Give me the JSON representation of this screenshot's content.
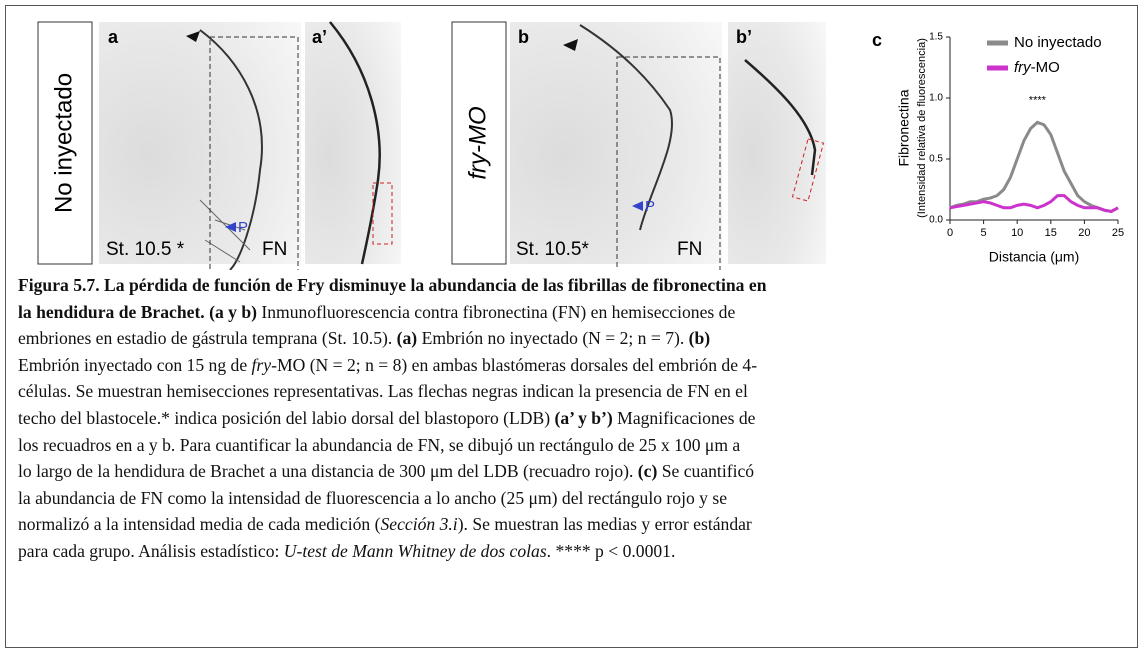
{
  "panels": {
    "a": {
      "label": "a",
      "stage": "St. 10.5 *",
      "stain": "FN",
      "marker": "P",
      "condition": "No inyectado"
    },
    "a_prime": {
      "label": "a’"
    },
    "b": {
      "label": "b",
      "stage": "St. 10.5*",
      "stain": "FN",
      "marker": "P",
      "condition": "fry-MO"
    },
    "b_prime": {
      "label": "b’"
    }
  },
  "chart_data": {
    "type": "line",
    "panel_label": "c",
    "x_label": "Distancia  (μm)",
    "y_label": "Fibronectina",
    "y_label_sub": "(Intensidad relativa de fluorescencia)",
    "annotation": "****",
    "x": [
      0,
      1,
      2,
      3,
      4,
      5,
      6,
      7,
      8,
      9,
      10,
      11,
      12,
      13,
      14,
      15,
      16,
      17,
      18,
      19,
      20,
      21,
      22,
      23,
      24,
      25
    ],
    "series": [
      {
        "name": "No inyectado",
        "color": "#8a8a8a",
        "values": [
          0.1,
          0.12,
          0.13,
          0.15,
          0.15,
          0.17,
          0.18,
          0.2,
          0.25,
          0.35,
          0.5,
          0.65,
          0.75,
          0.8,
          0.78,
          0.7,
          0.55,
          0.4,
          0.3,
          0.2,
          0.15,
          0.12,
          0.1,
          0.08,
          0.07,
          0.1
        ]
      },
      {
        "name": "fry-MO",
        "color": "#cc33cc",
        "values": [
          0.1,
          0.11,
          0.12,
          0.13,
          0.14,
          0.15,
          0.14,
          0.12,
          0.1,
          0.1,
          0.12,
          0.13,
          0.12,
          0.1,
          0.12,
          0.15,
          0.2,
          0.2,
          0.15,
          0.12,
          0.1,
          0.1,
          0.1,
          0.08,
          0.07,
          0.1
        ]
      }
    ],
    "xlim": [
      0,
      25
    ],
    "xticks": [
      0,
      5,
      10,
      15,
      20,
      25
    ],
    "ylim": [
      0,
      1.5
    ],
    "yticks": [
      {
        "value": 0,
        "label": "0.0"
      },
      0.5,
      {
        "value": 1,
        "label": "1.0"
      },
      1.5
    ]
  },
  "caption": {
    "lines": [
      [
        {
          "text": "Figura 5.7. La pérdida de función de Fry disminuye la abundancia de las fibrillas de fibronectina en",
          "bold": true
        }
      ],
      [
        {
          "text": "la hendidura de Brachet. (a y b)",
          "bold": true
        },
        {
          "text": " Inmunofluorescencia contra fibronectina (FN) en hemisecciones de"
        }
      ],
      [
        {
          "text": "embriones en estadio de gástrula temprana (St. 10.5). "
        },
        {
          "text": "(a)",
          "bold": true
        },
        {
          "text": " Embrión no inyectado (N = 2; n = 7). "
        },
        {
          "text": "(b)",
          "bold": true
        }
      ],
      [
        {
          "text": "Embrión inyectado con 15 ng de "
        },
        {
          "text": "fry",
          "italic": true
        },
        {
          "text": "-MO (N = 2; n = 8) en ambas blastómeras dorsales del embrión de 4-"
        }
      ],
      [
        {
          "text": "células. Se muestran hemisecciones representativas. Las flechas negras indican la presencia de FN en el"
        }
      ],
      [
        {
          "text": "techo del blastocele.* indica posición del labio dorsal del blastoporo (LDB) "
        },
        {
          "text": "(a’ y b’)",
          "bold": true
        },
        {
          "text": " Magnificaciones de"
        }
      ],
      [
        {
          "text": "los recuadros en a y b. Para cuantificar la abundancia de FN, se dibujó un rectángulo de 25 x 100 μm a"
        }
      ],
      [
        {
          "text": "lo largo de la hendidura de Brachet a una distancia de 300 μm del LDB (recuadro rojo). "
        },
        {
          "text": "(c)",
          "bold": true
        },
        {
          "text": " Se cuantificó"
        }
      ],
      [
        {
          "text": "la abundancia de FN como la intensidad de fluorescencia a lo ancho (25 μm) del rectángulo rojo y se"
        }
      ],
      [
        {
          "text": "normalizó a la intensidad media de cada medición ("
        },
        {
          "text": "Sección 3.i",
          "italic": true
        },
        {
          "text": "). Se muestran las medias y error estándar"
        }
      ],
      [
        {
          "text": "para cada grupo. Análisis estadístico: "
        },
        {
          "text": "U-test de Mann Whitney de dos colas",
          "italic": true
        },
        {
          "text": ". **** p < 0.0001."
        }
      ]
    ]
  }
}
